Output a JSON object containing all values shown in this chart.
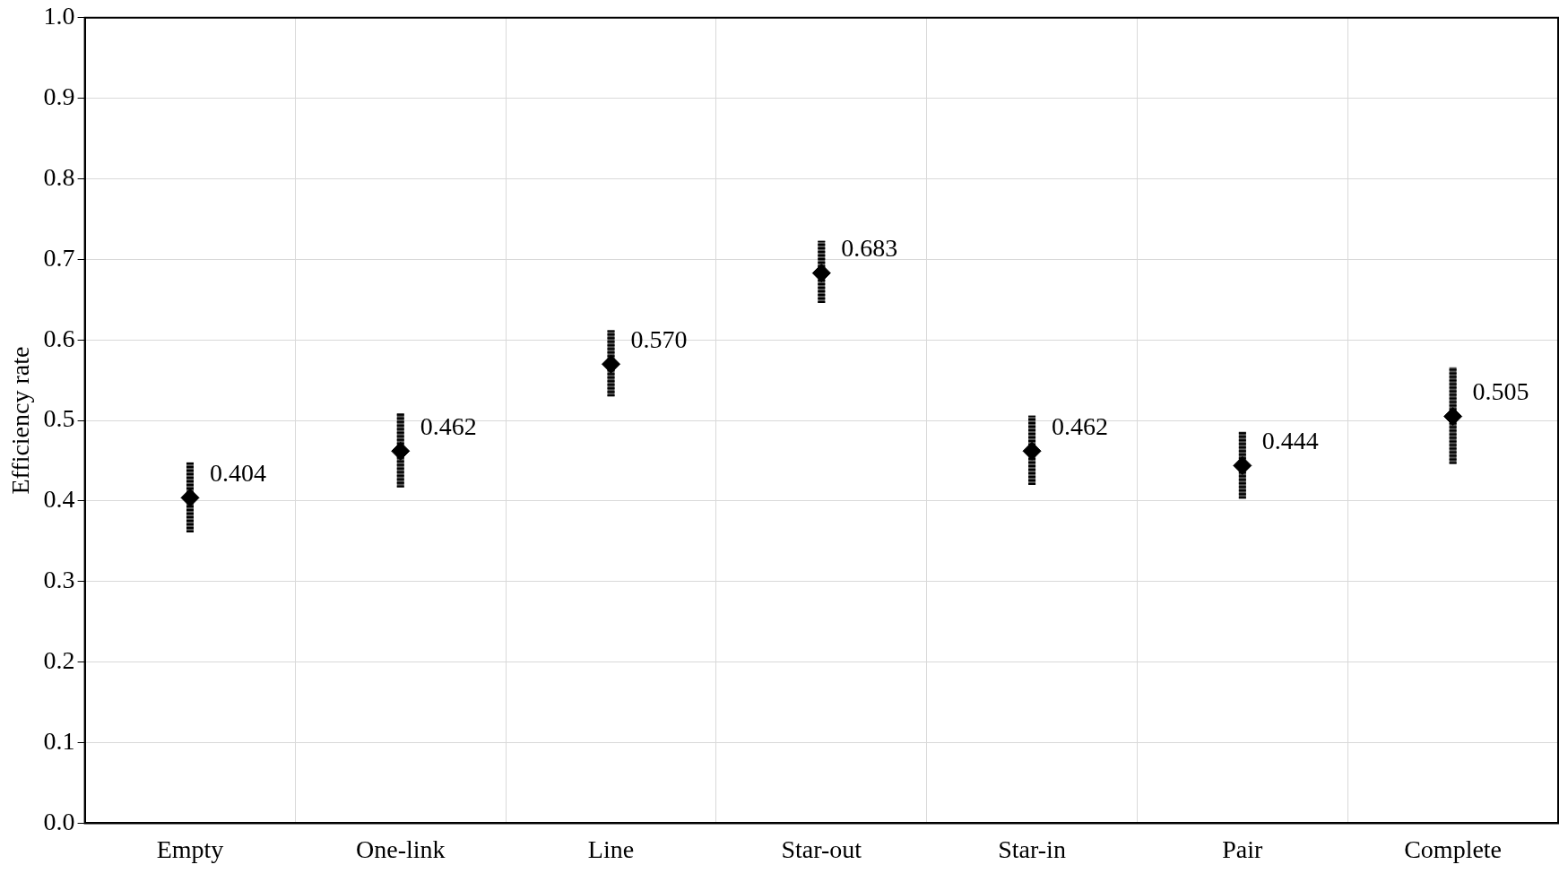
{
  "chart_data": {
    "type": "scatter",
    "ylabel": "Efficiency rate",
    "categories": [
      "Empty",
      "One-link",
      "Line",
      "Star-out",
      "Star-in",
      "Pair",
      "Complete"
    ],
    "values": [
      0.404,
      0.462,
      0.57,
      0.683,
      0.462,
      0.444,
      0.505
    ],
    "value_labels": [
      "0.404",
      "0.462",
      "0.570",
      "0.683",
      "0.462",
      "0.444",
      "0.505"
    ],
    "errors": [
      [
        0.361,
        0.448
      ],
      [
        0.417,
        0.509
      ],
      [
        0.53,
        0.612
      ],
      [
        0.646,
        0.723
      ],
      [
        0.42,
        0.506
      ],
      [
        0.403,
        0.486
      ],
      [
        0.446,
        0.566
      ]
    ],
    "color": "#000000",
    "marker": "diamond",
    "ylim": [
      0,
      1
    ],
    "yticks": [
      {
        "value": 0,
        "label": "0.0"
      },
      0.1,
      0.2,
      0.3,
      0.4,
      0.5,
      0.6,
      0.7,
      0.8,
      0.9,
      {
        "value": 1,
        "label": "1.0"
      }
    ],
    "grid": true,
    "legend": false
  }
}
